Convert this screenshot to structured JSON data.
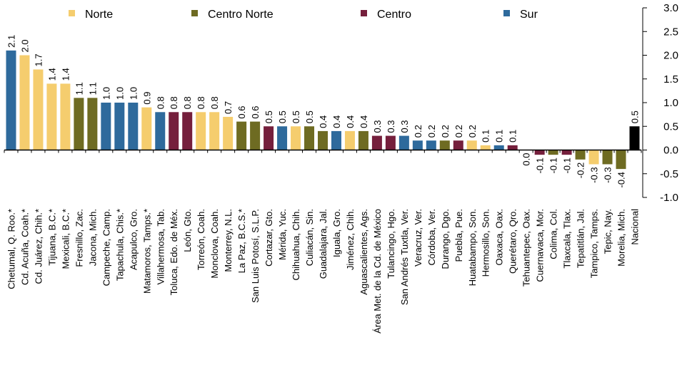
{
  "chart_data": {
    "type": "bar",
    "categories": [
      "Chetumal, Q. Roo.*",
      "Cd. Acuña, Coah.*",
      "Cd. Juárez, Chih.*",
      "Tijuana, B.C.*",
      "Mexicali, B.C.*",
      "Fresnillo, Zac.",
      "Jacona, Mich.",
      "Campeche, Camp.",
      "Tapachula, Chis.*",
      "Acapulco, Gro.",
      "Matamoros, Tamps.*",
      "Villahermosa, Tab.",
      "Toluca, Edo. de Méx.",
      "León, Gto.",
      "Torreón, Coah.",
      "Monclova, Coah.",
      "Monterrey, N.L.",
      "La Paz, B.C.S.*",
      "San Luis Potosí, S.L.P.",
      "Cortazar, Gto.",
      "Mérida, Yuc.",
      "Chihuahua, Chih.",
      "Culiacán, Sin.",
      "Guadalajara, Jal.",
      "Iguala, Gro.",
      "Jiménez, Chih.",
      "Aguascalientes, Ags.",
      "Área Met. de la Cd. de México",
      "Tulancingo, Hgo.",
      "San Andrés Tuxtla, Ver.",
      "Veracruz, Ver.",
      "Córdoba, Ver.",
      "Durango, Dgo.",
      "Puebla, Pue.",
      "Huatabampo, Son.",
      "Hermosillo, Son.",
      "Oaxaca, Oax.",
      "Querétaro, Qro.",
      "Tehuantepec, Oax.",
      "Cuernavaca, Mor.",
      "Colima, Col.",
      "Tlaxcala, Tlax.",
      "Tepatitlán, Jal.",
      "Tampico, Tamps.",
      "Tepic, Nay.",
      "Morelia, Mich.",
      "Nacional"
    ],
    "values": [
      2.1,
      2.0,
      1.7,
      1.4,
      1.4,
      1.1,
      1.1,
      1.0,
      1.0,
      1.0,
      0.9,
      0.8,
      0.8,
      0.8,
      0.8,
      0.8,
      0.7,
      0.6,
      0.6,
      0.5,
      0.5,
      0.5,
      0.5,
      0.4,
      0.4,
      0.4,
      0.4,
      0.3,
      0.3,
      0.3,
      0.2,
      0.2,
      0.2,
      0.2,
      0.2,
      0.1,
      0.1,
      0.1,
      0.0,
      -0.1,
      -0.1,
      -0.1,
      -0.2,
      -0.3,
      -0.3,
      -0.4,
      0.5
    ],
    "value_labels": [
      "2.1",
      "2.0",
      "1.7",
      "1.4",
      "1.4",
      "1.1",
      "1.1",
      "1.0",
      "1.0",
      "1.0",
      "0.9",
      "0.8",
      "0.8",
      "0.8",
      "0.8",
      "0.8",
      "0.7",
      "0.6",
      "0.6",
      "0.5",
      "0.5",
      "0.5",
      "0.5",
      "0.4",
      "0.4",
      "0.4",
      "0.4",
      "0.3",
      "0.3",
      "0.3",
      "0.2",
      "0.2",
      "0.2",
      "0.2",
      "0.2",
      "0.1",
      "0.1",
      "0.1",
      "0.0",
      "-0.1",
      "-0.1",
      "-0.1",
      "-0.2",
      "-0.3",
      "-0.3",
      "-0.4",
      "0.5"
    ],
    "colors": [
      "#2e6a9c",
      "#f5cd6e",
      "#f5cd6e",
      "#f5cd6e",
      "#f5cd6e",
      "#6e6b22",
      "#6e6b22",
      "#2e6a9c",
      "#2e6a9c",
      "#2e6a9c",
      "#f5cd6e",
      "#2e6a9c",
      "#751f3c",
      "#751f3c",
      "#f5cd6e",
      "#f5cd6e",
      "#f5cd6e",
      "#6e6b22",
      "#6e6b22",
      "#751f3c",
      "#2e6a9c",
      "#f5cd6e",
      "#6e6b22",
      "#6e6b22",
      "#2e6a9c",
      "#f5cd6e",
      "#6e6b22",
      "#751f3c",
      "#751f3c",
      "#2e6a9c",
      "#2e6a9c",
      "#2e6a9c",
      "#6e6b22",
      "#751f3c",
      "#f5cd6e",
      "#f5cd6e",
      "#2e6a9c",
      "#751f3c",
      "#2e6a9c",
      "#751f3c",
      "#6e6b22",
      "#751f3c",
      "#6e6b22",
      "#f5cd6e",
      "#6e6b22",
      "#6e6b22",
      "#000000"
    ],
    "legend": [
      {
        "name": "Norte",
        "color": "#f5cd6e"
      },
      {
        "name": "Centro Norte",
        "color": "#6e6b22"
      },
      {
        "name": "Centro",
        "color": "#751f3c"
      },
      {
        "name": "Sur",
        "color": "#2e6a9c"
      }
    ],
    "ylim": [
      -1,
      3
    ],
    "yticks": [
      {
        "value": -1,
        "label": "-1.0"
      },
      -0.5,
      {
        "value": 0,
        "label": "0.0"
      },
      0.5,
      {
        "value": 1,
        "label": "1.0"
      },
      1.5,
      {
        "value": 2,
        "label": "2.0"
      },
      2.5,
      {
        "value": 3,
        "label": "3.0"
      }
    ],
    "y_axis_side": "right"
  }
}
